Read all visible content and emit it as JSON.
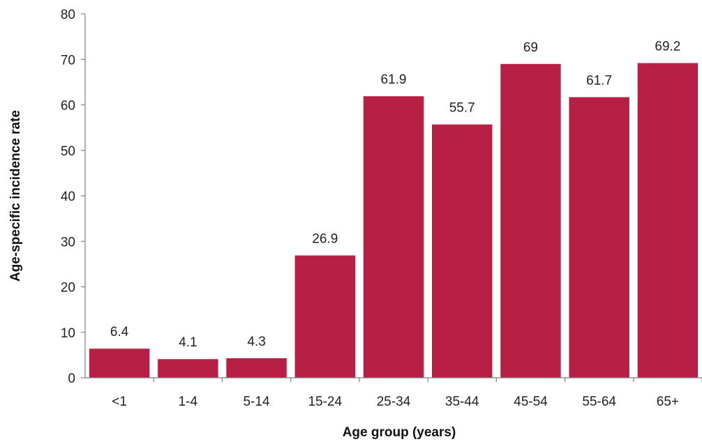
{
  "chart_data": {
    "type": "bar",
    "title": "",
    "xlabel": "Age group (years)",
    "ylabel": "Age-specific incidence rate",
    "categories": [
      "<1",
      "1-4",
      "5-14",
      "15-24",
      "25-34",
      "35-44",
      "45-54",
      "55-64",
      "65+"
    ],
    "values": [
      6.4,
      4.1,
      4.3,
      26.9,
      61.9,
      55.7,
      69,
      61.7,
      69.2
    ],
    "data_labels": [
      "6.4",
      "4.1",
      "4.3",
      "26.9",
      "61.9",
      "55.7",
      "69",
      "61.7",
      "69.2"
    ],
    "ylim": [
      0,
      80
    ],
    "yticks": [
      0,
      10,
      20,
      30,
      40,
      50,
      60,
      70,
      80
    ],
    "ytick_labels": [
      "0",
      "10",
      "20",
      "30",
      "40",
      "50",
      "60",
      "70",
      "80"
    ],
    "grid": false,
    "legend": "none",
    "bar_color": "#B81F45"
  }
}
